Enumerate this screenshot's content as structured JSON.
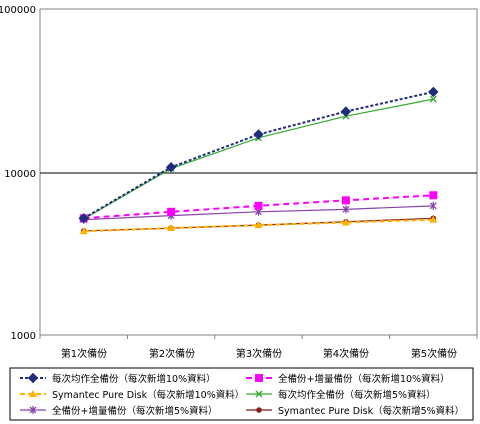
{
  "chart_data": {
    "type": "line",
    "title": "",
    "xlabel": "",
    "ylabel": "",
    "yscale": "log",
    "ylim": [
      1000,
      100000
    ],
    "yticks": [
      1000,
      10000,
      100000
    ],
    "ytick_labels": [
      "1000",
      "10000",
      "100000"
    ],
    "grid": "horizontal major gridline at 10000",
    "legend_position": "bottom",
    "categories": [
      "第1次備份",
      "第2次備份",
      "第3次備份",
      "第4次備份",
      "第5次備份"
    ],
    "series": [
      {
        "name": "每次均作全備份（每次新增10%資料）",
        "values": [
          5200,
          10700,
          17000,
          23500,
          31000
        ],
        "color": "#1f2d7a",
        "marker": "diamond",
        "dash": "3,2"
      },
      {
        "name": "全備份+增量備份（每次新增10%資料）",
        "values": [
          5200,
          5700,
          6200,
          6700,
          7200
        ],
        "color": "#ff00ff",
        "marker": "square",
        "dash": "6,4"
      },
      {
        "name": "Symantec Pure Disk（每次新增10%資料）",
        "values": [
          4330,
          4530,
          4720,
          4900,
          5100
        ],
        "color": "#ffb100",
        "marker": "triangle",
        "dash": "5,3"
      },
      {
        "name": "每次均作全備份（每次新增5%資料）",
        "values": [
          5150,
          10500,
          16200,
          22000,
          28000
        ],
        "color": "#33aa33",
        "marker": "x",
        "dash": ""
      },
      {
        "name": "全備份+增量備份（每次新增5%資料）",
        "values": [
          5100,
          5400,
          5700,
          5900,
          6200
        ],
        "color": "#8844aa",
        "marker": "star",
        "dash": ""
      },
      {
        "name": "Symantec Pure Disk（每次新增5%資料）",
        "values": [
          4350,
          4520,
          4720,
          4950,
          5200
        ],
        "color": "#8b1a1a",
        "marker": "dot",
        "dash": ""
      }
    ]
  }
}
